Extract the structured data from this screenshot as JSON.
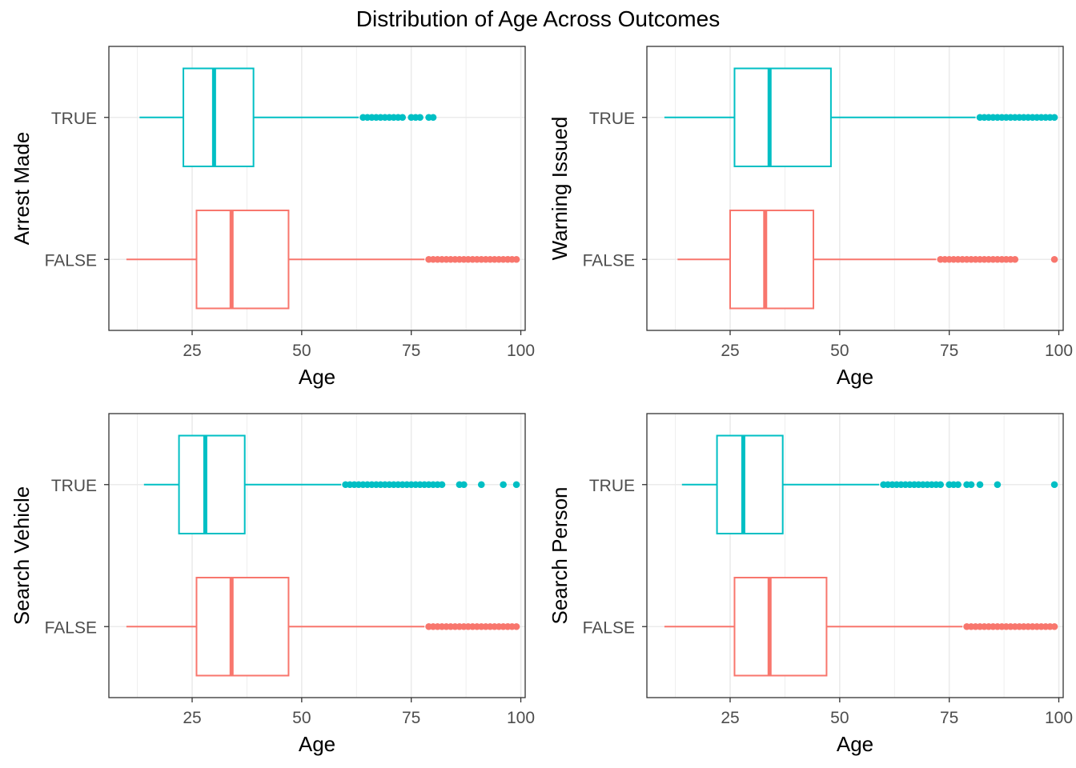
{
  "title": "Distribution of Age Across Outcomes",
  "colors": {
    "true_series": "#00BFC4",
    "false_series": "#F8766D",
    "grid": "#EBEBEB",
    "panel_border": "#333333"
  },
  "chart_data": [
    {
      "type": "boxplot",
      "orientation": "horizontal",
      "xlabel": "Age",
      "ylabel": "Arrest Made",
      "xlim": [
        6,
        101
      ],
      "xticks": [
        25,
        50,
        75,
        100
      ],
      "categories": [
        "FALSE",
        "TRUE"
      ],
      "grid": true,
      "legend": "none",
      "boxes": [
        {
          "category": "FALSE",
          "color": "#F8766D",
          "whisker_low": 10,
          "q1": 26,
          "median": 34,
          "q3": 47,
          "whisker_high": 78,
          "outliers": [
            79,
            80,
            81,
            82,
            83,
            84,
            85,
            86,
            87,
            88,
            89,
            90,
            91,
            92,
            93,
            94,
            95,
            96,
            97,
            98,
            99
          ]
        },
        {
          "category": "TRUE",
          "color": "#00BFC4",
          "whisker_low": 13,
          "q1": 23,
          "median": 30,
          "q3": 39,
          "whisker_high": 63,
          "outliers": [
            64,
            65,
            66,
            67,
            68,
            69,
            70,
            71,
            72,
            73,
            75,
            76,
            77,
            79,
            80
          ]
        }
      ]
    },
    {
      "type": "boxplot",
      "orientation": "horizontal",
      "xlabel": "Age",
      "ylabel": "Warning Issued",
      "xlim": [
        6,
        101
      ],
      "xticks": [
        25,
        50,
        75,
        100
      ],
      "categories": [
        "FALSE",
        "TRUE"
      ],
      "grid": true,
      "legend": "none",
      "boxes": [
        {
          "category": "FALSE",
          "color": "#F8766D",
          "whisker_low": 13,
          "q1": 25,
          "median": 33,
          "q3": 44,
          "whisker_high": 72,
          "outliers": [
            73,
            74,
            75,
            76,
            77,
            78,
            79,
            80,
            81,
            82,
            83,
            84,
            85,
            86,
            87,
            88,
            89,
            90,
            99
          ]
        },
        {
          "category": "TRUE",
          "color": "#00BFC4",
          "whisker_low": 10,
          "q1": 26,
          "median": 34,
          "q3": 48,
          "whisker_high": 81,
          "outliers": [
            82,
            83,
            84,
            85,
            86,
            87,
            88,
            89,
            90,
            91,
            92,
            93,
            94,
            95,
            96,
            97,
            98,
            99
          ]
        }
      ]
    },
    {
      "type": "boxplot",
      "orientation": "horizontal",
      "xlabel": "Age",
      "ylabel": "Search Vehicle",
      "xlim": [
        6,
        101
      ],
      "xticks": [
        25,
        50,
        75,
        100
      ],
      "categories": [
        "FALSE",
        "TRUE"
      ],
      "grid": true,
      "legend": "none",
      "boxes": [
        {
          "category": "FALSE",
          "color": "#F8766D",
          "whisker_low": 10,
          "q1": 26,
          "median": 34,
          "q3": 47,
          "whisker_high": 78,
          "outliers": [
            79,
            80,
            81,
            82,
            83,
            84,
            85,
            86,
            87,
            88,
            89,
            90,
            91,
            92,
            93,
            94,
            95,
            96,
            97,
            98,
            99
          ]
        },
        {
          "category": "TRUE",
          "color": "#00BFC4",
          "whisker_low": 14,
          "q1": 22,
          "median": 28,
          "q3": 37,
          "whisker_high": 59,
          "outliers": [
            60,
            61,
            62,
            63,
            64,
            65,
            66,
            67,
            68,
            69,
            70,
            71,
            72,
            73,
            74,
            75,
            76,
            77,
            78,
            79,
            80,
            81,
            82,
            86,
            87,
            91,
            96,
            99
          ]
        }
      ]
    },
    {
      "type": "boxplot",
      "orientation": "horizontal",
      "xlabel": "Age",
      "ylabel": "Search Person",
      "xlim": [
        6,
        101
      ],
      "xticks": [
        25,
        50,
        75,
        100
      ],
      "categories": [
        "FALSE",
        "TRUE"
      ],
      "grid": true,
      "legend": "none",
      "boxes": [
        {
          "category": "FALSE",
          "color": "#F8766D",
          "whisker_low": 10,
          "q1": 26,
          "median": 34,
          "q3": 47,
          "whisker_high": 78,
          "outliers": [
            79,
            80,
            81,
            82,
            83,
            84,
            85,
            86,
            87,
            88,
            89,
            90,
            91,
            92,
            93,
            94,
            95,
            96,
            97,
            98,
            99
          ]
        },
        {
          "category": "TRUE",
          "color": "#00BFC4",
          "whisker_low": 14,
          "q1": 22,
          "median": 28,
          "q3": 37,
          "whisker_high": 59,
          "outliers": [
            60,
            61,
            62,
            63,
            64,
            65,
            66,
            67,
            68,
            69,
            70,
            71,
            72,
            73,
            75,
            76,
            77,
            79,
            80,
            82,
            86,
            99
          ]
        }
      ]
    }
  ]
}
